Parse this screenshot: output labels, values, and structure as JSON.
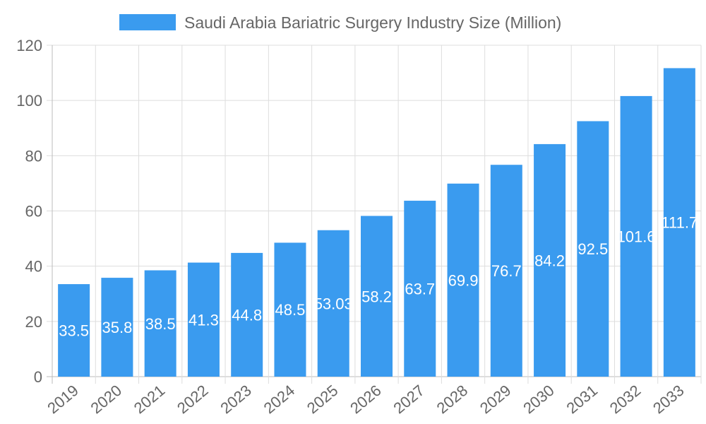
{
  "chart_data": {
    "type": "bar",
    "title": "",
    "legend": {
      "position": "top",
      "entries": [
        "Saudi Arabia Bariatric Surgery Industry Size (Million)"
      ]
    },
    "series": [
      {
        "name": "Saudi Arabia Bariatric Surgery Industry Size (Million)",
        "color": "#3a9bef",
        "values": [
          33.5,
          35.8,
          38.5,
          41.3,
          44.8,
          48.5,
          53.03,
          58.2,
          63.7,
          69.9,
          76.7,
          84.2,
          92.5,
          101.6,
          111.7
        ]
      }
    ],
    "categories": [
      "2019",
      "2020",
      "2021",
      "2022",
      "2023",
      "2024",
      "2025",
      "2026",
      "2027",
      "2028",
      "2029",
      "2030",
      "2031",
      "2032",
      "2033"
    ],
    "xlabel": "",
    "ylabel": "",
    "ylim": [
      0,
      120
    ],
    "yticks": [
      0,
      20,
      40,
      60,
      80,
      100,
      120
    ],
    "grid": true
  }
}
